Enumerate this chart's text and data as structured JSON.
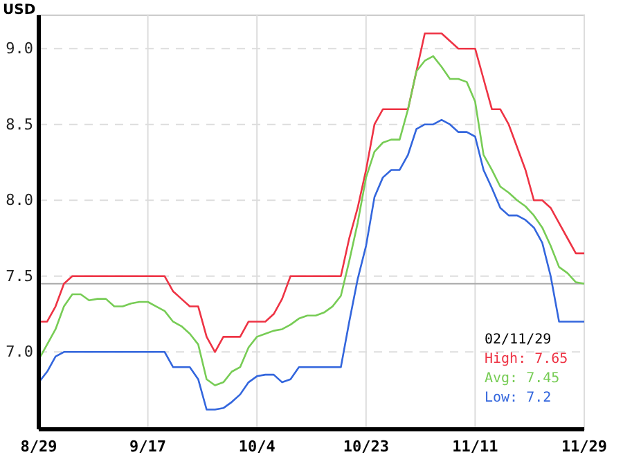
{
  "chart_data": {
    "type": "line",
    "ylabel": "USD",
    "categories": [
      "8/29",
      null,
      null,
      null,
      null,
      null,
      null,
      null,
      null,
      null,
      null,
      null,
      null,
      "9/17",
      null,
      null,
      null,
      null,
      null,
      null,
      null,
      null,
      null,
      null,
      null,
      null,
      "10/4",
      null,
      null,
      null,
      null,
      null,
      null,
      null,
      null,
      null,
      null,
      null,
      null,
      "10/23",
      null,
      null,
      null,
      null,
      null,
      null,
      null,
      null,
      null,
      null,
      null,
      null,
      "11/11",
      null,
      null,
      null,
      null,
      null,
      null,
      null,
      null,
      null,
      null,
      null,
      null,
      "11/29"
    ],
    "series": [
      {
        "color": "#ee3344",
        "values": [
          7.2,
          7.2,
          7.3,
          7.45,
          7.5,
          7.5,
          7.5,
          7.5,
          7.5,
          7.5,
          7.5,
          7.5,
          7.5,
          7.5,
          7.5,
          7.5,
          7.4,
          7.35,
          7.3,
          7.3,
          7.1,
          7.0,
          7.1,
          7.1,
          7.1,
          7.2,
          7.2,
          7.2,
          7.25,
          7.35,
          7.5,
          7.5,
          7.5,
          7.5,
          7.5,
          7.5,
          7.5,
          7.75,
          7.95,
          8.2,
          8.5,
          8.6,
          8.6,
          8.6,
          8.6,
          8.85,
          9.1,
          9.1,
          9.1,
          9.05,
          9.0,
          9.0,
          9.0,
          8.8,
          8.6,
          8.6,
          8.5,
          8.35,
          8.2,
          8.0,
          8.0,
          7.95,
          7.85,
          7.75,
          7.65,
          7.65
        ]
      },
      {
        "color": "#77cc55",
        "values": [
          6.95,
          7.05,
          7.15,
          7.3,
          7.38,
          7.38,
          7.34,
          7.35,
          7.35,
          7.3,
          7.3,
          7.32,
          7.33,
          7.33,
          7.3,
          7.27,
          7.2,
          7.17,
          7.12,
          7.05,
          6.82,
          6.78,
          6.8,
          6.87,
          6.9,
          7.03,
          7.1,
          7.12,
          7.14,
          7.15,
          7.18,
          7.22,
          7.24,
          7.24,
          7.26,
          7.3,
          7.37,
          7.6,
          7.85,
          8.15,
          8.32,
          8.38,
          8.4,
          8.4,
          8.6,
          8.85,
          8.92,
          8.95,
          8.88,
          8.8,
          8.8,
          8.78,
          8.65,
          8.3,
          8.2,
          8.09,
          8.05,
          8.0,
          7.96,
          7.9,
          7.82,
          7.7,
          7.56,
          7.52,
          7.46,
          7.45
        ]
      },
      {
        "color": "#3366dd",
        "values": [
          6.8,
          6.87,
          6.97,
          7.0,
          7.0,
          7.0,
          7.0,
          7.0,
          7.0,
          7.0,
          7.0,
          7.0,
          7.0,
          7.0,
          7.0,
          7.0,
          6.9,
          6.9,
          6.9,
          6.82,
          6.62,
          6.62,
          6.63,
          6.67,
          6.72,
          6.8,
          6.84,
          6.85,
          6.85,
          6.8,
          6.82,
          6.9,
          6.9,
          6.9,
          6.9,
          6.9,
          6.9,
          7.2,
          7.48,
          7.7,
          8.02,
          8.15,
          8.2,
          8.2,
          8.3,
          8.47,
          8.5,
          8.5,
          8.53,
          8.5,
          8.45,
          8.45,
          8.42,
          8.2,
          8.08,
          7.95,
          7.9,
          7.9,
          7.87,
          7.82,
          7.72,
          7.5,
          7.2,
          7.2,
          7.2,
          7.2
        ]
      }
    ],
    "ylim": [
      6.49,
      9.22
    ],
    "yticks": [
      {
        "value": 7,
        "label": "7.0"
      },
      {
        "value": 7.5,
        "label": "7.5"
      },
      {
        "value": 8,
        "label": "8.0"
      },
      {
        "value": 8.5,
        "label": "8.5"
      },
      {
        "value": 9,
        "label": "9.0"
      }
    ],
    "grid": true,
    "marker": "none",
    "line_style": "solid",
    "ref_lines": [
      {
        "axis": "y",
        "value": 7.45,
        "color": "#aaaaaa"
      }
    ],
    "annotations": [
      "02/11/29",
      "High: 7.65",
      "Avg: 7.45",
      "Low: 7.2"
    ]
  }
}
